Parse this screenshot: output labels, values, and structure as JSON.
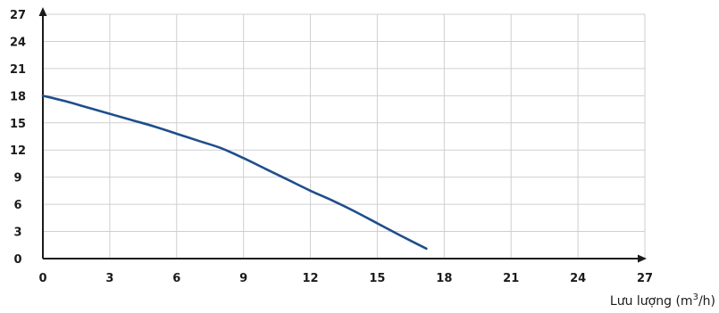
{
  "chart_data": {
    "type": "line",
    "title": "",
    "xlabel": "Lưu lượng (m",
    "xlabel_superscript": "3",
    "xlabel_suffix": "/h)",
    "ylabel": "",
    "xlim": [
      0,
      27
    ],
    "ylim": [
      0,
      27
    ],
    "x_ticks": [
      "0",
      "3",
      "6",
      "9",
      "12",
      "15",
      "18",
      "21",
      "24",
      "27"
    ],
    "y_ticks": [
      "0",
      "3",
      "6",
      "9",
      "12",
      "15",
      "18",
      "21",
      "24",
      "27"
    ],
    "grid": true,
    "series": [
      {
        "color": "#1f4e8c",
        "x": [
          0,
          1,
          2,
          3,
          4,
          5,
          6,
          7,
          8,
          9,
          10,
          11,
          12,
          13,
          14,
          15,
          16,
          17.2
        ],
        "y": [
          18.0,
          17.4,
          16.7,
          16.0,
          15.3,
          14.6,
          13.8,
          13.0,
          12.2,
          11.1,
          9.9,
          8.7,
          7.5,
          6.4,
          5.2,
          3.9,
          2.6,
          1.1
        ]
      }
    ]
  }
}
